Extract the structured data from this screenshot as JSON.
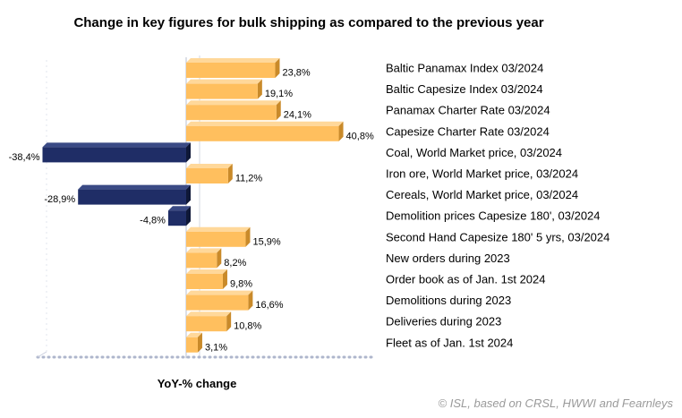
{
  "chart_data": {
    "type": "bar",
    "orientation": "horizontal",
    "title": "Change in key figures for bulk shipping as compared to the previous year",
    "xlabel": "YoY-% change",
    "ylabel": "",
    "xlim": [
      -45,
      48
    ],
    "grid": false,
    "legend": "none",
    "categories": [
      "Baltic Panamax Index 03/2024",
      "Baltic Capesize Index 03/2024",
      "Panamax Charter Rate 03/2024",
      "Capesize Charter Rate 03/2024",
      "Coal, World Market price, 03/2024",
      "Iron ore, World Market price, 03/2024",
      "Cereals, World Market price, 03/2024",
      "Demolition prices Capesize 180', 03/2024",
      "Second Hand Capesize 180' 5 yrs, 03/2024",
      "New orders during 2023",
      "Order book as of Jan. 1st  2024",
      "Demolitions during 2023",
      "Deliveries during 2023",
      "Fleet as of Jan. 1st  2024"
    ],
    "values": [
      23.8,
      19.1,
      24.1,
      40.8,
      -38.4,
      11.2,
      -28.9,
      -4.8,
      15.9,
      8.2,
      9.8,
      16.6,
      10.8,
      3.1
    ],
    "value_labels": [
      "23,8%",
      "19,1%",
      "24,1%",
      "40,8%",
      "-38,4%",
      "11,2%",
      "-28,9%",
      "-4,8%",
      "15,9%",
      "8,2%",
      "9,8%",
      "16,6%",
      "10,8%",
      "3,1%"
    ],
    "colors": {
      "positive": "#ffbf5e",
      "positive_side": "#c98a2a",
      "negative": "#1f2d66",
      "negative_side": "#0f1838",
      "rule": "#aeb6cc"
    }
  },
  "source": "© ISL, based on CRSL, HWWI and Fearnleys"
}
